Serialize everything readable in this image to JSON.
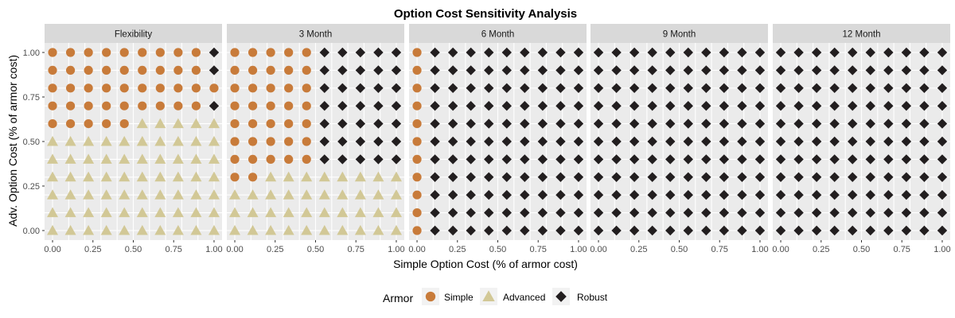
{
  "chart_data": {
    "type": "scatter",
    "title": "Option Cost Sensitivity Analysis",
    "xlabel": "Simple Option Cost (% of armor cost)",
    "ylabel": "Adv. Option Cost (% of armor cost)",
    "xlim": [
      0,
      1
    ],
    "ylim": [
      0,
      1
    ],
    "x_ticks": [
      "0.00",
      "0.25",
      "0.50",
      "0.75",
      "1.00"
    ],
    "y_ticks": [
      "0.00",
      "0.25",
      "0.50",
      "0.75",
      "1.00"
    ],
    "grid": true,
    "grid_step": 0.1,
    "legend": {
      "title": "Armor",
      "position": "bottom",
      "entries": [
        {
          "label": "Simple",
          "shape": "circle",
          "color": "#C87B3A"
        },
        {
          "label": "Advanced",
          "shape": "triangle",
          "color": "#D2C896"
        },
        {
          "label": "Robust",
          "shape": "diamond",
          "color": "#221E1F"
        }
      ]
    },
    "panel_bg": "#EBEBEB",
    "strip_bg": "#D9D9D9",
    "panels": [
      {
        "label": "Flexibility",
        "rows": [
          {
            "y": 1.0,
            "classes": "SSSSSSSSSR"
          },
          {
            "y": 0.9,
            "classes": "SSSSSSSSSR"
          },
          {
            "y": 0.8,
            "classes": "SSSSSSSSSS"
          },
          {
            "y": 0.7,
            "classes": "SSSSSSSSSR"
          },
          {
            "y": 0.6,
            "classes": "SSSSSAAAAA"
          },
          {
            "y": 0.5,
            "classes": "AAAAAAAAAA"
          },
          {
            "y": 0.4,
            "classes": "AAAAAAAAAA"
          },
          {
            "y": 0.3,
            "classes": "AAAAAAAAAA"
          },
          {
            "y": 0.2,
            "classes": "AAAAAAAAAA"
          },
          {
            "y": 0.1,
            "classes": "AAAAAAAAAA"
          },
          {
            "y": 0.0,
            "classes": "AAAAAAAAAA"
          }
        ]
      },
      {
        "label": "3 Month",
        "rows": [
          {
            "y": 1.0,
            "classes": "SSSSSRRRRR"
          },
          {
            "y": 0.9,
            "classes": "SSSSSRRRRR"
          },
          {
            "y": 0.8,
            "classes": "SSSSSRRRRR"
          },
          {
            "y": 0.7,
            "classes": "SSSSSRRRRR"
          },
          {
            "y": 0.6,
            "classes": "SSSSSRRRRR"
          },
          {
            "y": 0.5,
            "classes": "SSSSSRRRRR"
          },
          {
            "y": 0.4,
            "classes": "SSSSSRRRRR"
          },
          {
            "y": 0.3,
            "classes": "SSAAAAAAAA"
          },
          {
            "y": 0.2,
            "classes": "AAAAAAAAAA"
          },
          {
            "y": 0.1,
            "classes": "AAAAAAAAAA"
          },
          {
            "y": 0.0,
            "classes": "AAAAAAAAAA"
          }
        ]
      },
      {
        "label": "6 Month",
        "rows": [
          {
            "y": 1.0,
            "classes": "SRRRRRRRRR"
          },
          {
            "y": 0.9,
            "classes": "SRRRRRRRRR"
          },
          {
            "y": 0.8,
            "classes": "SRRRRRRRRR"
          },
          {
            "y": 0.7,
            "classes": "SRRRRRRRRR"
          },
          {
            "y": 0.6,
            "classes": "SRRRRRRRRR"
          },
          {
            "y": 0.5,
            "classes": "SRRRRRRRRR"
          },
          {
            "y": 0.4,
            "classes": "SRRRRRRRRR"
          },
          {
            "y": 0.3,
            "classes": "SRRRRRRRRR"
          },
          {
            "y": 0.2,
            "classes": "SRRRRRRRRR"
          },
          {
            "y": 0.1,
            "classes": "SRRRRRRRRR"
          },
          {
            "y": 0.0,
            "classes": "SRRRRRRRRR"
          }
        ]
      },
      {
        "label": "9 Month",
        "rows": [
          {
            "y": 1.0,
            "classes": "RRRRRRRRRR"
          },
          {
            "y": 0.9,
            "classes": "RRRRRRRRRR"
          },
          {
            "y": 0.8,
            "classes": "RRRRRRRRRR"
          },
          {
            "y": 0.7,
            "classes": "RRRRRRRRRR"
          },
          {
            "y": 0.6,
            "classes": "RRRRRRRRRR"
          },
          {
            "y": 0.5,
            "classes": "RRRRRRRRRR"
          },
          {
            "y": 0.4,
            "classes": "RRRRRRRRRR"
          },
          {
            "y": 0.3,
            "classes": "RRRRRRRRRR"
          },
          {
            "y": 0.2,
            "classes": "RRRRRRRRRR"
          },
          {
            "y": 0.1,
            "classes": "RRRRRRRRRR"
          },
          {
            "y": 0.0,
            "classes": "RRRRRRRRRR"
          }
        ]
      },
      {
        "label": "12 Month",
        "rows": [
          {
            "y": 1.0,
            "classes": "RRRRRRRRRR"
          },
          {
            "y": 0.9,
            "classes": "RRRRRRRRRR"
          },
          {
            "y": 0.8,
            "classes": "RRRRRRRRRR"
          },
          {
            "y": 0.7,
            "classes": "RRRRRRRRRR"
          },
          {
            "y": 0.6,
            "classes": "RRRRRRRRRR"
          },
          {
            "y": 0.5,
            "classes": "RRRRRRRRRR"
          },
          {
            "y": 0.4,
            "classes": "RRRRRRRRRR"
          },
          {
            "y": 0.3,
            "classes": "RRRRRRRRRR"
          },
          {
            "y": 0.2,
            "classes": "RRRRRRRRRR"
          },
          {
            "y": 0.1,
            "classes": "RRRRRRRRRR"
          },
          {
            "y": 0.0,
            "classes": "RRRRRRRRRR"
          }
        ]
      }
    ]
  }
}
